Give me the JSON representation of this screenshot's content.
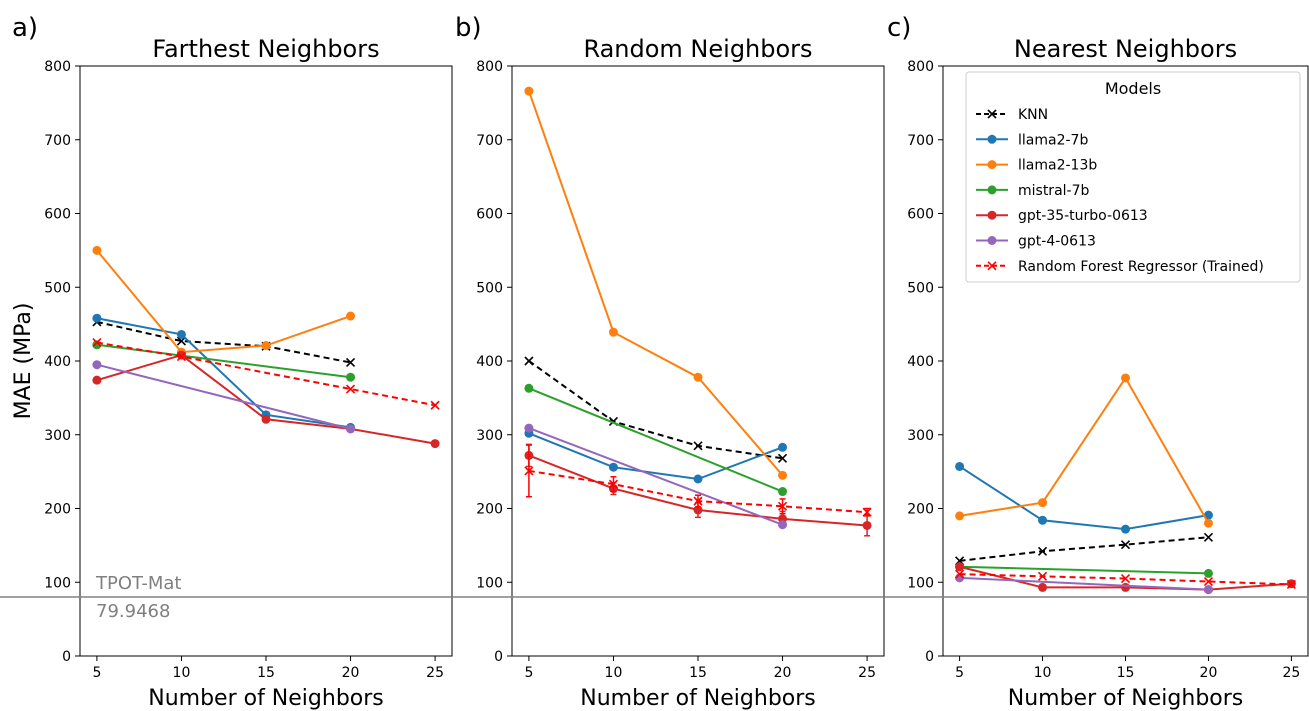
{
  "ylabel": "MAE (MPa)",
  "xlabel": "Number of Neighbors",
  "y_ticks": [
    0,
    100,
    200,
    300,
    400,
    500,
    600,
    700,
    800
  ],
  "x_ticks": [
    5,
    10,
    15,
    20,
    25
  ],
  "reference_line": {
    "label": "TPOT-Mat",
    "value_text": "79.9468",
    "value": 79.9468
  },
  "legend": {
    "title": "Models",
    "entries": [
      {
        "label": "KNN",
        "color": "#000000",
        "dashed": true,
        "marker": "x"
      },
      {
        "label": "llama2-7b",
        "color": "#1f77b4",
        "dashed": false,
        "marker": "o"
      },
      {
        "label": "llama2-13b",
        "color": "#ff7f0e",
        "dashed": false,
        "marker": "o"
      },
      {
        "label": "mistral-7b",
        "color": "#2ca02c",
        "dashed": false,
        "marker": "o"
      },
      {
        "label": "gpt-35-turbo-0613",
        "color": "#d62728",
        "dashed": false,
        "marker": "o"
      },
      {
        "label": "gpt-4-0613",
        "color": "#9467bd",
        "dashed": false,
        "marker": "o"
      },
      {
        "label": "Random Forest Regressor (Trained)",
        "color": "#ff0000",
        "dashed": true,
        "marker": "x"
      }
    ]
  },
  "chart_data": [
    {
      "type": "line",
      "panel_letter": "a)",
      "title": "Farthest Neighbors",
      "ylim": [
        0,
        800
      ],
      "xlim": [
        4,
        26
      ],
      "series": [
        {
          "name": "KNN",
          "x": [
            5,
            10,
            15,
            20
          ],
          "values": [
            453,
            427,
            420,
            398
          ]
        },
        {
          "name": "llama2-7b",
          "x": [
            5,
            10,
            15,
            20
          ],
          "values": [
            458,
            436,
            327,
            310
          ]
        },
        {
          "name": "llama2-13b",
          "x": [
            5,
            10,
            15,
            20
          ],
          "values": [
            550,
            412,
            421,
            461
          ]
        },
        {
          "name": "mistral-7b",
          "x": [
            5,
            20
          ],
          "values": [
            422,
            378
          ]
        },
        {
          "name": "gpt-35-turbo-0613",
          "x": [
            5,
            10,
            15,
            20,
            25
          ],
          "values": [
            374,
            408,
            321,
            308,
            288
          ]
        },
        {
          "name": "gpt-4-0613",
          "x": [
            5,
            20
          ],
          "values": [
            395,
            308
          ]
        },
        {
          "name": "Random Forest Regressor (Trained)",
          "x": [
            5,
            10,
            20,
            25
          ],
          "values": [
            425,
            406,
            362,
            340
          ]
        }
      ]
    },
    {
      "type": "line",
      "panel_letter": "b)",
      "title": "Random Neighbors",
      "ylim": [
        0,
        800
      ],
      "xlim": [
        4,
        26
      ],
      "series": [
        {
          "name": "KNN",
          "x": [
            5,
            10,
            15,
            20
          ],
          "values": [
            400,
            318,
            285,
            268
          ]
        },
        {
          "name": "llama2-7b",
          "x": [
            5,
            10,
            15,
            20
          ],
          "values": [
            302,
            256,
            240,
            283
          ]
        },
        {
          "name": "llama2-13b",
          "x": [
            5,
            10,
            15,
            20
          ],
          "values": [
            766,
            439,
            378,
            245
          ]
        },
        {
          "name": "mistral-7b",
          "x": [
            5,
            20
          ],
          "values": [
            363,
            223
          ]
        },
        {
          "name": "gpt-35-turbo-0613",
          "x": [
            5,
            10,
            15,
            20,
            25
          ],
          "values": [
            272,
            227,
            198,
            186,
            177
          ],
          "err": [
            15,
            8,
            10,
            10,
            14
          ]
        },
        {
          "name": "gpt-4-0613",
          "x": [
            5,
            20
          ],
          "values": [
            309,
            178
          ]
        },
        {
          "name": "Random Forest Regressor (Trained)",
          "x": [
            5,
            10,
            15,
            20,
            25
          ],
          "values": [
            251,
            233,
            210,
            203,
            195
          ],
          "err": [
            35,
            10,
            8,
            10,
            5
          ]
        }
      ]
    },
    {
      "type": "line",
      "panel_letter": "c)",
      "title": "Nearest Neighbors",
      "ylim": [
        0,
        800
      ],
      "xlim": [
        4,
        26
      ],
      "series": [
        {
          "name": "KNN",
          "x": [
            5,
            10,
            15,
            20
          ],
          "values": [
            129,
            142,
            151,
            161
          ]
        },
        {
          "name": "llama2-7b",
          "x": [
            5,
            10,
            15,
            20
          ],
          "values": [
            257,
            184,
            172,
            191
          ]
        },
        {
          "name": "llama2-13b",
          "x": [
            5,
            10,
            15,
            20
          ],
          "values": [
            190,
            208,
            377,
            180
          ]
        },
        {
          "name": "mistral-7b",
          "x": [
            5,
            20
          ],
          "values": [
            121,
            112
          ]
        },
        {
          "name": "gpt-35-turbo-0613",
          "x": [
            5,
            10,
            15,
            20,
            25
          ],
          "values": [
            121,
            93,
            93,
            90,
            98
          ]
        },
        {
          "name": "gpt-4-0613",
          "x": [
            5,
            20
          ],
          "values": [
            106,
            90
          ]
        },
        {
          "name": "Random Forest Regressor (Trained)",
          "x": [
            5,
            10,
            15,
            20,
            25
          ],
          "values": [
            111,
            108,
            105,
            101,
            97
          ]
        }
      ]
    }
  ]
}
